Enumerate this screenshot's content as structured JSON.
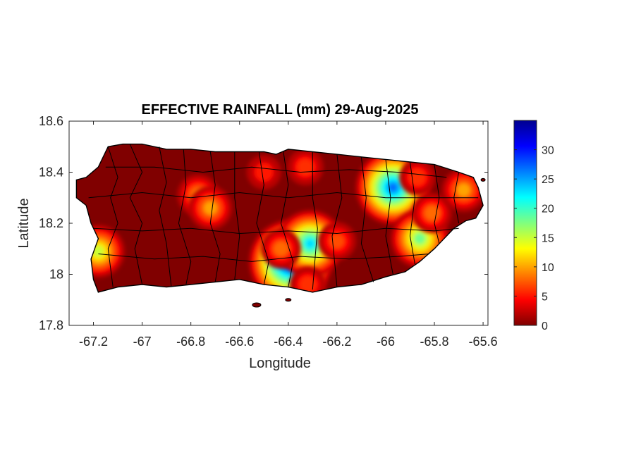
{
  "figure": {
    "title": "EFFECTIVE RAINFALL (mm) 29-Aug-2025",
    "xlabel": "Longitude",
    "ylabel": "Latitude",
    "xlim": [
      -67.3,
      -65.58
    ],
    "ylim": [
      17.8,
      18.6
    ],
    "xticks": [
      -67.2,
      -67,
      -66.8,
      -66.6,
      -66.4,
      -66.2,
      -66,
      -65.8,
      -65.6
    ],
    "xtick_labels": [
      "-67.2",
      "-67",
      "-66.8",
      "-66.6",
      "-66.4",
      "-66.2",
      "-66",
      "-65.8",
      "-65.6"
    ],
    "yticks": [
      17.8,
      18,
      18.2,
      18.4,
      18.6
    ],
    "ytick_labels": [
      "17.8",
      "18",
      "18.2",
      "18.4",
      "18.6"
    ]
  },
  "colorbar": {
    "colormap": "jet",
    "range": [
      0,
      35
    ],
    "ticks": [
      0,
      5,
      10,
      15,
      20,
      25,
      30
    ],
    "tick_labels": [
      "0",
      "5",
      "10",
      "15",
      "20",
      "25",
      "30"
    ],
    "stops": [
      "#7f0000",
      "#ff0000",
      "#ff7f00",
      "#ffff00",
      "#7fff7f",
      "#00ffff",
      "#007fff",
      "#0000ff",
      "#00008f"
    ]
  },
  "map": {
    "region": "Puerto Rico",
    "background_color": "#800000",
    "boundary_color": "#000000",
    "rain_cells": [
      {
        "lon": -66.77,
        "lat": 18.31,
        "value": 9
      },
      {
        "lon": -66.72,
        "lat": 18.26,
        "value": 10
      },
      {
        "lon": -67.18,
        "lat": 18.09,
        "value": 15
      },
      {
        "lon": -66.39,
        "lat": 18.05,
        "value": 32
      },
      {
        "lon": -66.31,
        "lat": 18.12,
        "value": 23
      },
      {
        "lon": -66.43,
        "lat": 18.1,
        "value": 8
      },
      {
        "lon": -66.2,
        "lat": 18.13,
        "value": 7
      },
      {
        "lon": -65.97,
        "lat": 18.34,
        "value": 27
      },
      {
        "lon": -65.86,
        "lat": 18.14,
        "value": 18
      },
      {
        "lon": -65.81,
        "lat": 18.24,
        "value": 8
      },
      {
        "lon": -65.68,
        "lat": 18.33,
        "value": 10
      },
      {
        "lon": -66.5,
        "lat": 18.4,
        "value": 5
      },
      {
        "lon": -66.33,
        "lat": 18.42,
        "value": 6
      },
      {
        "lon": -65.87,
        "lat": 18.38,
        "value": 6
      },
      {
        "lon": -66.32,
        "lat": 17.96,
        "value": 6
      }
    ]
  }
}
